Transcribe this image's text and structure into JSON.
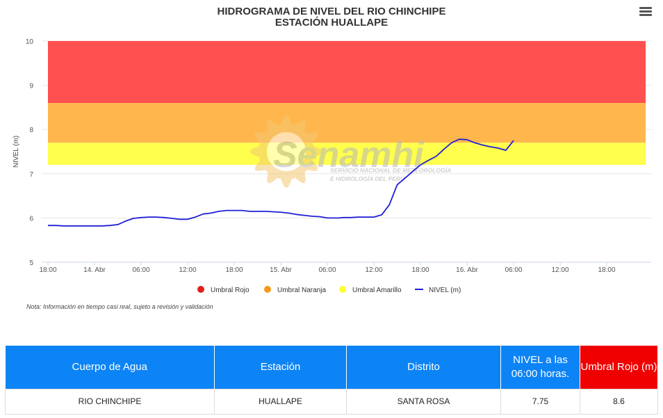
{
  "chart_data": {
    "type": "line",
    "title": "HIDROGRAMA DE NIVEL DEL RIO CHINCHIPE",
    "subtitle": "ESTACIÓN HUALLAPE",
    "ylabel": "NIVEL (m)",
    "xlabel": "",
    "ylim": [
      5,
      10
    ],
    "y_ticks": [
      "5",
      "6",
      "7",
      "8",
      "9",
      "10"
    ],
    "x_ticks": [
      "18:00",
      "14. Abr",
      "06:00",
      "12:00",
      "18:00",
      "15. Abr",
      "06:00",
      "12:00",
      "18:00",
      "16. Abr",
      "06:00",
      "12:00",
      "18:00"
    ],
    "x_unit": "hours from 13 Apr 18:00",
    "xlim": [
      0,
      66
    ],
    "grid": true,
    "legend_position": "bottom-center",
    "bands": [
      {
        "name": "Umbral Rojo",
        "from": 8.6,
        "to": 10,
        "color": "#ff5050"
      },
      {
        "name": "Umbral Naranja",
        "from": 7.7,
        "to": 8.6,
        "color": "#ffb74d"
      },
      {
        "name": "Umbral Amarillo",
        "from": 7.2,
        "to": 7.7,
        "color": "#ffff4d"
      }
    ],
    "series": [
      {
        "name": "NIVEL (m)",
        "color": "#1f1fd6",
        "x": [
          0,
          1,
          2,
          3,
          4,
          5,
          6,
          7,
          8,
          9,
          10,
          11,
          12,
          13,
          14,
          15,
          16,
          17,
          18,
          19,
          20,
          21,
          22,
          23,
          24,
          25,
          26,
          27,
          28,
          29,
          30,
          31,
          32,
          33,
          34,
          35,
          36,
          37,
          37.5,
          38,
          39,
          40,
          41,
          42,
          43,
          44,
          45,
          46,
          47,
          48,
          49,
          50
        ],
        "values": [
          5.83,
          5.83,
          5.82,
          5.82,
          5.82,
          5.82,
          5.82,
          5.82,
          5.83,
          5.85,
          5.93,
          5.99,
          6.01,
          6.02,
          6.02,
          6.01,
          5.99,
          5.97,
          5.97,
          6.02,
          6.09,
          6.11,
          6.15,
          6.17,
          6.17,
          6.17,
          6.15,
          6.15,
          6.15,
          6.14,
          6.13,
          6.11,
          6.08,
          6.06,
          6.04,
          6.03,
          6.0,
          6.0,
          6.0,
          6.01,
          6.01,
          6.02,
          6.02,
          6.02,
          6.07,
          6.3,
          6.75,
          6.9,
          7.05,
          7.2,
          7.3,
          7.39
        ]
      },
      {
        "name": "NIVEL (m) cont.",
        "color": "#1f1fd6",
        "x": [
          51,
          52,
          53,
          54,
          55,
          56,
          57,
          58,
          59,
          60
        ],
        "values": [
          7.55,
          7.7,
          7.78,
          7.77,
          7.7,
          7.65,
          7.61,
          7.58,
          7.53,
          7.75
        ]
      }
    ],
    "legend": [
      {
        "label": "Umbral Rojo",
        "color": "#e02020",
        "marker": "dot"
      },
      {
        "label": "Umbral Naranja",
        "color": "#f59a1c",
        "marker": "dot"
      },
      {
        "label": "Umbral Amarillo",
        "color": "#ffff33",
        "marker": "dot"
      },
      {
        "label": "NIVEL (m)",
        "color": "#1f1fd6",
        "marker": "line"
      }
    ]
  },
  "note": "Nota: Información en tiempo casi real, sujeto a revisión y validación",
  "watermark": {
    "brand": "Senamhi",
    "line1": "SERVICIO NACIONAL DE METEOROLOGÍA",
    "line2": "E HIDROLOGÍA DEL PERÚ"
  },
  "menu_icon": "hamburger-menu-icon",
  "table": {
    "headers": [
      "Cuerpo de Agua",
      "Estación",
      "Distrito",
      "NIVEL a las 06:00 horas.",
      "Umbral Rojo (m)"
    ],
    "header_colors": [
      "#0d84f5",
      "#0d84f5",
      "#0d84f5",
      "#0d84f5",
      "#f00000"
    ],
    "row": [
      "RIO CHINCHIPE",
      "HUALLAPE",
      "SANTA ROSA",
      "7.75",
      "8.6"
    ]
  }
}
